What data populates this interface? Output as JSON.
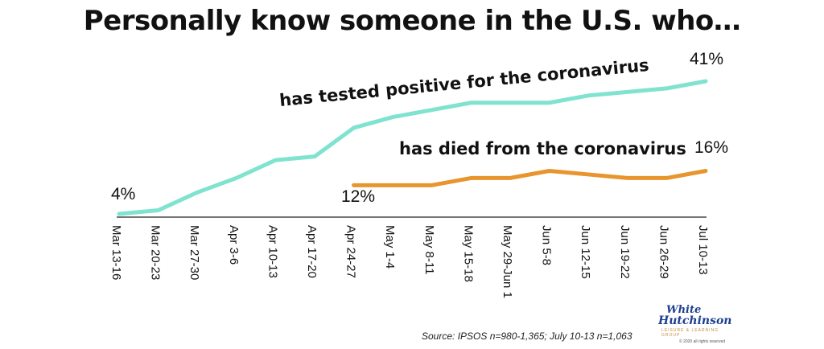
{
  "chart_data": {
    "type": "line",
    "title": "Personally know someone in the U.S. who…",
    "categories": [
      "Mar 13-16",
      "Mar 20-23",
      "Mar 27-30",
      "Apr 3-6",
      "Apr 10-13",
      "Apr 17-20",
      "Apr 24-27",
      "May 1-4",
      "May 8-11",
      "May 15-18",
      "May 29-Jun 1",
      "Jun 5-8",
      "Jun 12-15",
      "Jun 19-22",
      "Jun 26-29",
      "Jul 10-13"
    ],
    "series": [
      {
        "name": "has tested positive for the coronavirus",
        "color": "#7fe3cf",
        "values": [
          4,
          5,
          10,
          14,
          19,
          20,
          28,
          31,
          33,
          35,
          35,
          35,
          37,
          38,
          39,
          41
        ]
      },
      {
        "name": "has died from the coronavirus",
        "color": "#e8952e",
        "values": [
          null,
          null,
          null,
          null,
          null,
          null,
          12,
          12,
          12,
          14,
          14,
          16,
          15,
          14,
          14,
          16
        ]
      }
    ],
    "data_labels": [
      "4%",
      "41%",
      "12%",
      "16%"
    ],
    "ylim": [
      0,
      45
    ],
    "grid": false,
    "source": "Source: IPSOS n=980-1,365; July 10-13 n=1,063"
  },
  "logo": {
    "line1": "White",
    "line2": "Hutchinson",
    "tagline": "LEISURE & LEARNING GROUP",
    "copyright": "© 2020 all rights reserved"
  }
}
